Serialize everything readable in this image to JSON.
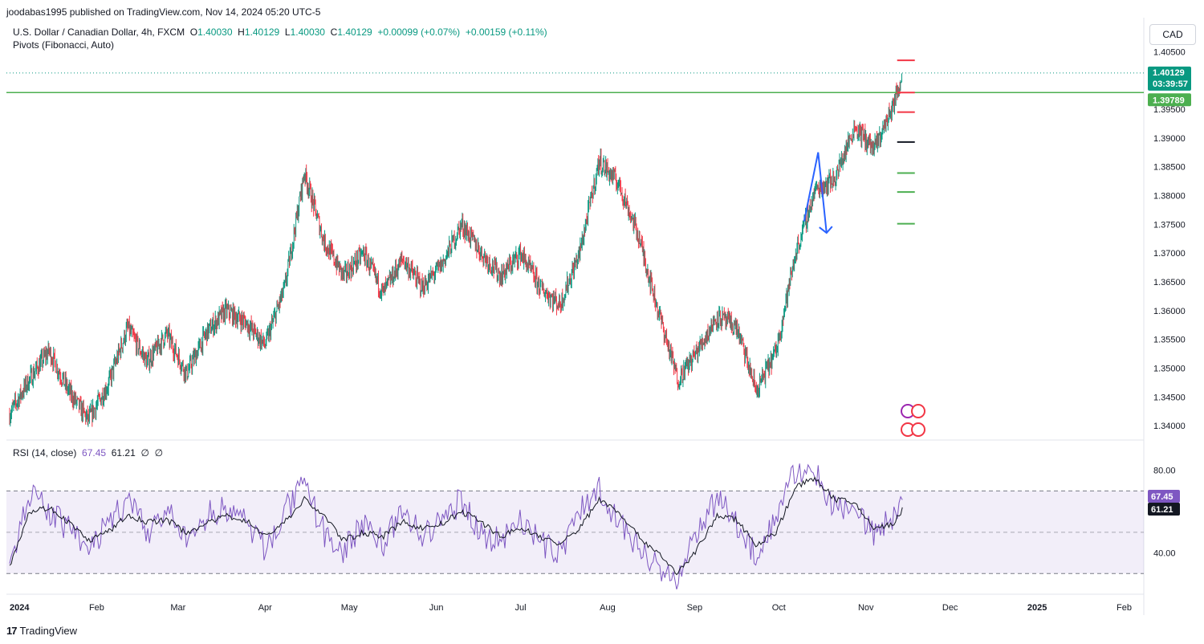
{
  "header": {
    "published": "joodabas1995 published on TradingView.com, Nov 14, 2024 05:20 UTC-5"
  },
  "legend": {
    "symbol": "U.S. Dollar / Canadian Dollar, 4h, FXCM",
    "o_label": "O",
    "o": "1.40030",
    "h_label": "H",
    "h": "1.40129",
    "l_label": "L",
    "l": "1.40030",
    "c_label": "C",
    "c": "1.40129",
    "change": "+0.00099 (+0.07%)",
    "change2": "+0.00159 (+0.11%)",
    "indicator": "Pivots (Fibonacci, Auto)"
  },
  "rsi_legend": {
    "name": "RSI (14, close)",
    "rsi": "67.45",
    "ma": "61.21",
    "n1": "∅",
    "n2": "∅"
  },
  "currency_button": "CAD",
  "footer": {
    "brand": "TradingView",
    "logo": "17"
  },
  "colors": {
    "up": "#089981",
    "down": "#f23645",
    "level": "#4caf50",
    "rsi": "#7e57c2",
    "arrow": "#2962ff",
    "pivot_r": "#f23645",
    "pivot_p": "#131722",
    "pivot_s": "#4caf50"
  },
  "chart_data": [
    {
      "type": "candlestick",
      "y_ticks": [
        "1.40500",
        "1.39500",
        "1.39000",
        "1.38500",
        "1.38000",
        "1.37500",
        "1.37000",
        "1.36500",
        "1.36000",
        "1.35500",
        "1.35000",
        "1.34500",
        "1.34000"
      ],
      "ylim": [
        1.3375,
        1.407
      ],
      "x_ticks": [
        "2024",
        "Feb",
        "Mar",
        "Apr",
        "May",
        "Jun",
        "Jul",
        "Aug",
        "Sep",
        "Oct",
        "Nov",
        "Dec",
        "2025",
        "Feb"
      ],
      "price_badges": {
        "last": "1.40129",
        "countdown": "03:39:57",
        "level": "1.39789"
      },
      "horizontal_level": 1.39789,
      "last_price": 1.40129,
      "close_path": [
        [
          "2024-01-01",
          1.342
        ],
        [
          "2024-01-08",
          1.348
        ],
        [
          "2024-01-15",
          1.353
        ],
        [
          "2024-01-22",
          1.346
        ],
        [
          "2024-01-29",
          1.341
        ],
        [
          "2024-02-05",
          1.347
        ],
        [
          "2024-02-12",
          1.357
        ],
        [
          "2024-02-19",
          1.351
        ],
        [
          "2024-02-26",
          1.356
        ],
        [
          "2024-03-04",
          1.349
        ],
        [
          "2024-03-11",
          1.356
        ],
        [
          "2024-03-18",
          1.36
        ],
        [
          "2024-03-25",
          1.358
        ],
        [
          "2024-04-01",
          1.354
        ],
        [
          "2024-04-08",
          1.364
        ],
        [
          "2024-04-15",
          1.384
        ],
        [
          "2024-04-22",
          1.372
        ],
        [
          "2024-04-29",
          1.366
        ],
        [
          "2024-05-06",
          1.37
        ],
        [
          "2024-05-13",
          1.363
        ],
        [
          "2024-05-20",
          1.369
        ],
        [
          "2024-05-27",
          1.364
        ],
        [
          "2024-06-03",
          1.368
        ],
        [
          "2024-06-10",
          1.375
        ],
        [
          "2024-06-17",
          1.37
        ],
        [
          "2024-06-24",
          1.366
        ],
        [
          "2024-07-01",
          1.37
        ],
        [
          "2024-07-08",
          1.364
        ],
        [
          "2024-07-15",
          1.361
        ],
        [
          "2024-07-22",
          1.37
        ],
        [
          "2024-07-29",
          1.386
        ],
        [
          "2024-08-05",
          1.382
        ],
        [
          "2024-08-12",
          1.373
        ],
        [
          "2024-08-19",
          1.36
        ],
        [
          "2024-08-26",
          1.348
        ],
        [
          "2024-09-02",
          1.353
        ],
        [
          "2024-09-09",
          1.359
        ],
        [
          "2024-09-16",
          1.357
        ],
        [
          "2024-09-23",
          1.346
        ],
        [
          "2024-09-30",
          1.353
        ],
        [
          "2024-10-07",
          1.37
        ],
        [
          "2024-10-14",
          1.381
        ],
        [
          "2024-10-21",
          1.383
        ],
        [
          "2024-10-28",
          1.392
        ],
        [
          "2024-11-04",
          1.388
        ],
        [
          "2024-11-11",
          1.396
        ],
        [
          "2024-11-14",
          1.40129
        ]
      ],
      "pivots": {
        "R3": 1.4035,
        "R2": 1.3979,
        "R1": 1.3945,
        "P": 1.3893,
        "S1": 1.3839,
        "S2": 1.3806,
        "S3": 1.3751
      },
      "annotation": {
        "type": "arrow-down",
        "from": [
          "2024-10-10",
          1.3755
        ],
        "peak": [
          "2024-10-15",
          1.3875
        ],
        "to": [
          "2024-10-18",
          1.3735
        ]
      }
    },
    {
      "type": "line",
      "name": "RSI (14, close)",
      "y_ticks": [
        "80.00",
        "40.00"
      ],
      "ylim": [
        20,
        90
      ],
      "bands": {
        "upper": 70,
        "middle": 50,
        "lower": 30
      },
      "badges": {
        "rsi": "67.45",
        "ma": "61.21"
      },
      "rsi_path": [
        [
          "2024-01-01",
          35
        ],
        [
          "2024-01-08",
          68
        ],
        [
          "2024-01-15",
          60
        ],
        [
          "2024-01-22",
          52
        ],
        [
          "2024-01-29",
          40
        ],
        [
          "2024-02-05",
          55
        ],
        [
          "2024-02-12",
          65
        ],
        [
          "2024-02-19",
          50
        ],
        [
          "2024-02-26",
          60
        ],
        [
          "2024-03-04",
          45
        ],
        [
          "2024-03-11",
          58
        ],
        [
          "2024-03-18",
          62
        ],
        [
          "2024-03-25",
          55
        ],
        [
          "2024-04-01",
          42
        ],
        [
          "2024-04-08",
          60
        ],
        [
          "2024-04-15",
          72
        ],
        [
          "2024-04-22",
          50
        ],
        [
          "2024-04-29",
          40
        ],
        [
          "2024-05-06",
          55
        ],
        [
          "2024-05-13",
          45
        ],
        [
          "2024-05-20",
          60
        ],
        [
          "2024-05-27",
          48
        ],
        [
          "2024-06-03",
          55
        ],
        [
          "2024-06-10",
          66
        ],
        [
          "2024-06-17",
          50
        ],
        [
          "2024-06-24",
          45
        ],
        [
          "2024-07-01",
          58
        ],
        [
          "2024-07-08",
          44
        ],
        [
          "2024-07-15",
          40
        ],
        [
          "2024-07-22",
          60
        ],
        [
          "2024-07-29",
          72
        ],
        [
          "2024-08-05",
          55
        ],
        [
          "2024-08-12",
          42
        ],
        [
          "2024-08-19",
          35
        ],
        [
          "2024-08-26",
          24
        ],
        [
          "2024-09-02",
          52
        ],
        [
          "2024-09-09",
          65
        ],
        [
          "2024-09-16",
          55
        ],
        [
          "2024-09-23",
          38
        ],
        [
          "2024-09-30",
          58
        ],
        [
          "2024-10-07",
          80
        ],
        [
          "2024-10-14",
          78
        ],
        [
          "2024-10-21",
          62
        ],
        [
          "2024-10-28",
          64
        ],
        [
          "2024-11-04",
          48
        ],
        [
          "2024-11-11",
          58
        ],
        [
          "2024-11-14",
          67.45
        ]
      ],
      "ma_path": [
        [
          "2024-01-01",
          34
        ],
        [
          "2024-01-08",
          60
        ],
        [
          "2024-01-15",
          62
        ],
        [
          "2024-01-22",
          55
        ],
        [
          "2024-01-29",
          46
        ],
        [
          "2024-02-05",
          50
        ],
        [
          "2024-02-12",
          58
        ],
        [
          "2024-02-19",
          55
        ],
        [
          "2024-02-26",
          56
        ],
        [
          "2024-03-04",
          50
        ],
        [
          "2024-03-11",
          54
        ],
        [
          "2024-03-18",
          58
        ],
        [
          "2024-03-25",
          56
        ],
        [
          "2024-04-01",
          48
        ],
        [
          "2024-04-08",
          55
        ],
        [
          "2024-04-15",
          66
        ],
        [
          "2024-04-22",
          58
        ],
        [
          "2024-04-29",
          46
        ],
        [
          "2024-05-06",
          50
        ],
        [
          "2024-05-13",
          48
        ],
        [
          "2024-05-20",
          55
        ],
        [
          "2024-05-27",
          52
        ],
        [
          "2024-06-03",
          54
        ],
        [
          "2024-06-10",
          60
        ],
        [
          "2024-06-17",
          55
        ],
        [
          "2024-06-24",
          48
        ],
        [
          "2024-07-01",
          52
        ],
        [
          "2024-07-08",
          48
        ],
        [
          "2024-07-15",
          44
        ],
        [
          "2024-07-22",
          52
        ],
        [
          "2024-07-29",
          66
        ],
        [
          "2024-08-05",
          60
        ],
        [
          "2024-08-12",
          48
        ],
        [
          "2024-08-19",
          40
        ],
        [
          "2024-08-26",
          30
        ],
        [
          "2024-09-02",
          42
        ],
        [
          "2024-09-09",
          58
        ],
        [
          "2024-09-16",
          56
        ],
        [
          "2024-09-23",
          44
        ],
        [
          "2024-09-30",
          50
        ],
        [
          "2024-10-07",
          72
        ],
        [
          "2024-10-14",
          76
        ],
        [
          "2024-10-21",
          66
        ],
        [
          "2024-10-28",
          64
        ],
        [
          "2024-11-04",
          52
        ],
        [
          "2024-11-11",
          54
        ],
        [
          "2024-11-14",
          61.21
        ]
      ]
    }
  ]
}
